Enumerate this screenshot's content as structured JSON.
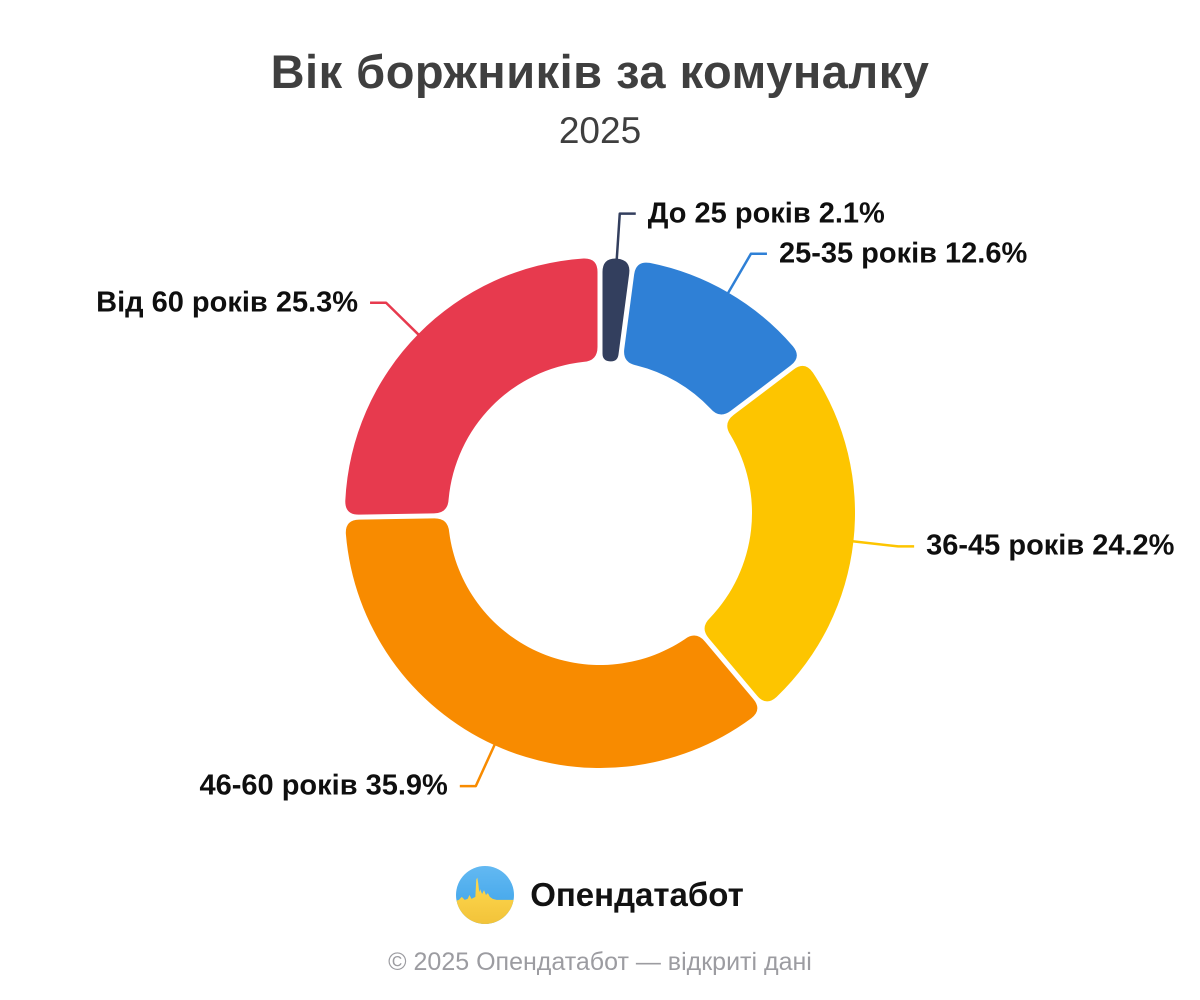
{
  "header": {
    "title": "Вік боржників за комуналку",
    "subtitle": "2025"
  },
  "chart_data": {
    "type": "pie",
    "variant": "donut",
    "title": "Вік боржників за комуналку",
    "subtitle": "2025",
    "unit": "%",
    "start_angle_deg": 0,
    "direction": "clockwise",
    "legend": "none",
    "data_labels": "outside-with-leader-lines",
    "series": [
      {
        "label": "До 25 років",
        "value": 2.1,
        "display": "До 25 років 2.1%",
        "color": "#333f5e"
      },
      {
        "label": "25-35 років",
        "value": 12.6,
        "display": "25-35 років 12.6%",
        "color": "#2f80d6"
      },
      {
        "label": "36-45 років",
        "value": 24.2,
        "display": "36-45 років 24.2%",
        "color": "#fdc500"
      },
      {
        "label": "46-60 років",
        "value": 35.9,
        "display": "46-60 років 35.9%",
        "color": "#f88b00"
      },
      {
        "label": "Від 60 років",
        "value": 25.3,
        "display": "Від 60 років 25.3%",
        "color": "#e73a4e"
      }
    ]
  },
  "branding": {
    "logo_text": "Опендатабот",
    "logo_icon": "opendatabot-flag-pulse-icon",
    "flag_blue_top": "#63b9f2",
    "flag_blue_bottom": "#38a0e8",
    "flag_yellow_top": "#ffd94f",
    "flag_yellow_bottom": "#f2c33a"
  },
  "footer": {
    "copyright": "© 2025 Опендатабот — відкриті дані"
  }
}
